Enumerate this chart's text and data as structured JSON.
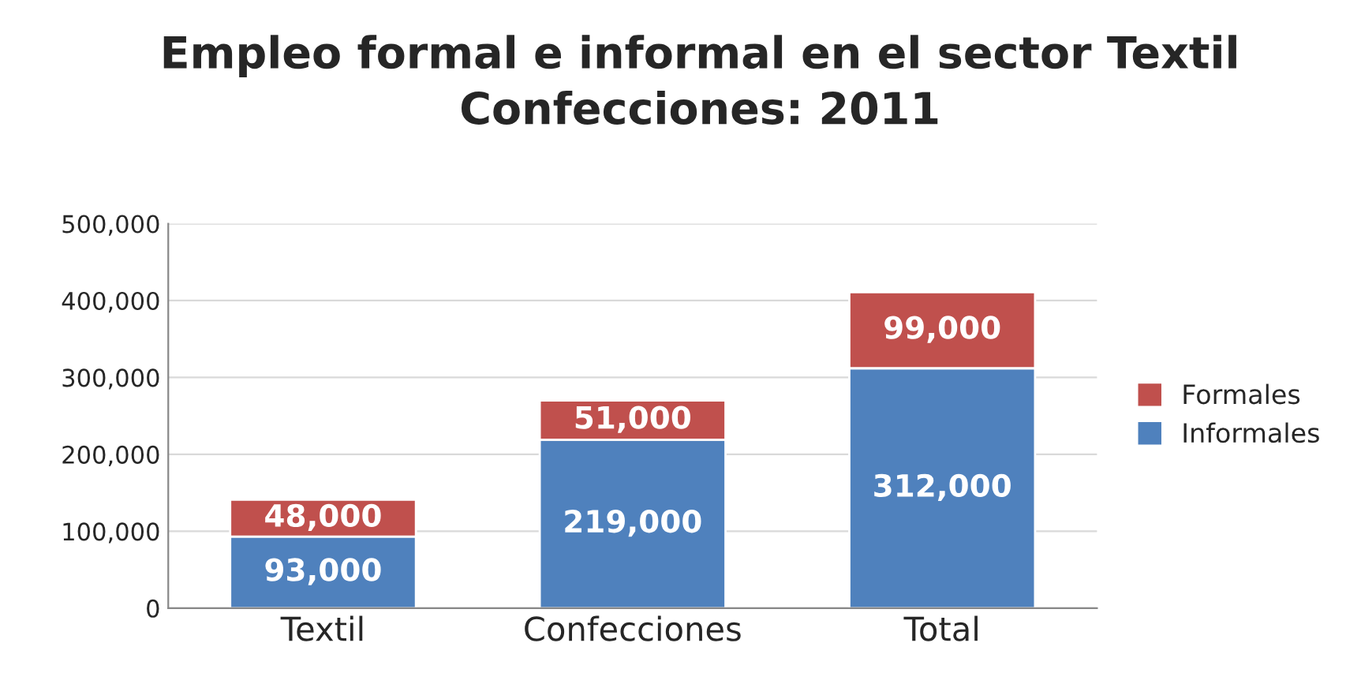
{
  "chart_data": {
    "type": "bar",
    "title": "Empleo formal e informal en el sector Textil\nConfecciones: 2011",
    "categories": [
      "Textil",
      "Confecciones",
      "Total"
    ],
    "stacked": true,
    "series": [
      {
        "name": "Informales",
        "color": "#4f81bd",
        "values": [
          93000,
          219000,
          312000
        ],
        "value_labels": [
          "93,000",
          "219,000",
          "312,000"
        ]
      },
      {
        "name": "Formales",
        "color": "#c0504d",
        "values": [
          48000,
          51000,
          99000
        ],
        "value_labels": [
          "48,000",
          "51,000",
          "99,000"
        ]
      }
    ],
    "ylim": [
      0,
      500000
    ],
    "yticks": [
      0,
      {
        "value": 100000,
        "label": "100,000"
      },
      {
        "value": 200000,
        "label": "200,000"
      },
      {
        "value": 300000,
        "label": "300,000"
      },
      {
        "value": 400000,
        "label": "400,000"
      },
      {
        "value": 500000,
        "label": "500,000"
      }
    ],
    "grid": "y",
    "legend": "right"
  }
}
